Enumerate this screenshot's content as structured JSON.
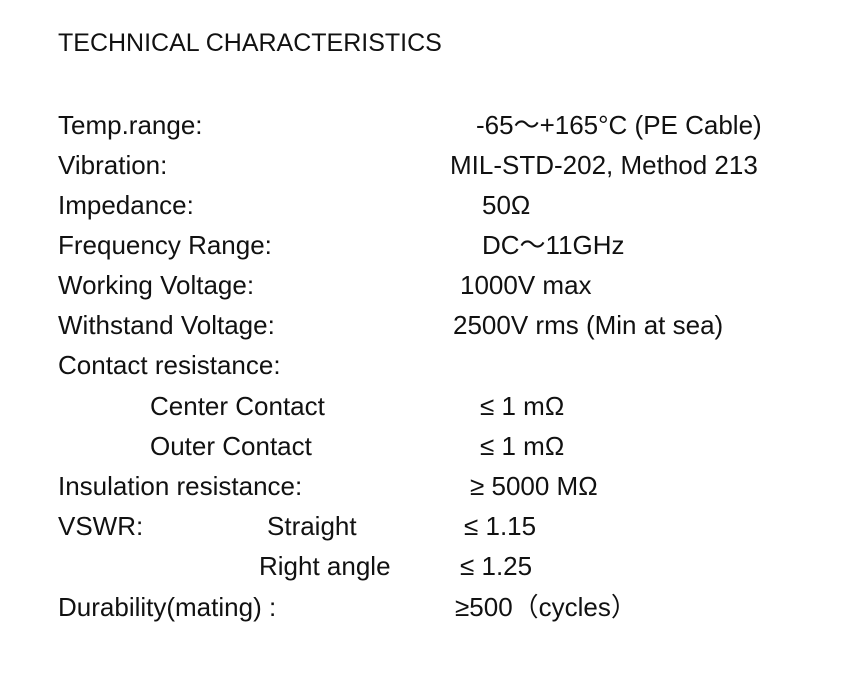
{
  "title": "TECHNICAL CHARACTERISTICS",
  "rows": [
    {
      "label": "Temp.range:",
      "value": "-65～+165°C (PE Cable)"
    },
    {
      "label": "Vibration:",
      "value": "MIL-STD-202, Method 213"
    },
    {
      "label": "Impedance:",
      "value": "50Ω"
    },
    {
      "label": "Frequency Range:",
      "value": "DC～11GHz"
    },
    {
      "label": "Working Voltage:",
      "value": "1000V max"
    },
    {
      "label": "Withstand Voltage:",
      "value": "2500V rms (Min at sea)"
    },
    {
      "label": "Contact resistance:",
      "value": ""
    },
    {
      "label": "Center Contact",
      "value": "≤ 1 mΩ"
    },
    {
      "label": "Outer Contact",
      "value": "≤ 1 mΩ"
    },
    {
      "label": "Insulation resistance:",
      "value": "≥ 5000 MΩ"
    },
    {
      "label": "VSWR:",
      "sub": "Straight",
      "value": "≤ 1.15"
    },
    {
      "label": "",
      "sub": "Right angle",
      "value": "≤ 1.25"
    },
    {
      "label": "Durability(mating) :",
      "value": "≥500（cycles）"
    }
  ]
}
